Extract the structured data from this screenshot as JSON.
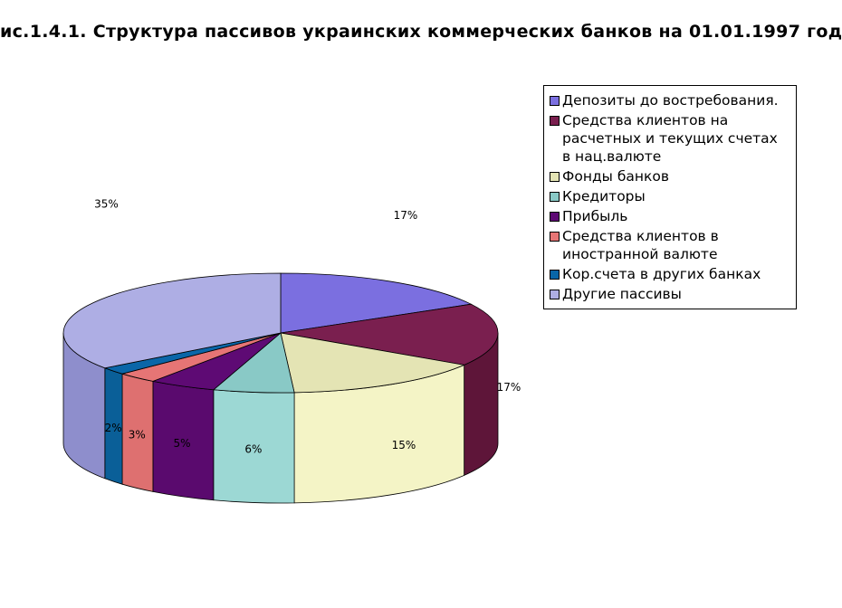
{
  "chart_data": {
    "type": "pie",
    "title": "ис.1.4.1. Структура пассивов украинских коммерческих банков на 01.01.1997 год",
    "legend_position": "right",
    "slices": [
      {
        "name": "Депозиты до востребования.",
        "value": 17,
        "label": "17%",
        "color": "#7b6fe0",
        "side_color": "#5b50b0"
      },
      {
        "name": "Средства клиентов на расчетных и текущих счетах в нац.валюте",
        "value": 17,
        "label": "17%",
        "color": "#7a1f4f",
        "side_color": "#5e1539"
      },
      {
        "name": "Фонды банков",
        "value": 15,
        "label": "15%",
        "color": "#e4e4b4",
        "side_color": "#f4f4c6"
      },
      {
        "name": "Кредиторы",
        "value": 6,
        "label": "6%",
        "color": "#89c9c6",
        "side_color": "#9cd8d4"
      },
      {
        "name": "Прибыль",
        "value": 5,
        "label": "5%",
        "color": "#5e0a74",
        "side_color": "#5a0a6e"
      },
      {
        "name": "Средства клиентов в иностранной валюте",
        "value": 3,
        "label": "3%",
        "color": "#e67575",
        "side_color": "#de7070"
      },
      {
        "name": "Кор.счета в других банках",
        "value": 2,
        "label": "2%",
        "color": "#0a66a8",
        "side_color": "#0a5f98"
      },
      {
        "name": "Другие пассивы",
        "value": 35,
        "label": "35%",
        "color": "#aeaee4",
        "side_color": "#8e8ecc"
      }
    ]
  }
}
